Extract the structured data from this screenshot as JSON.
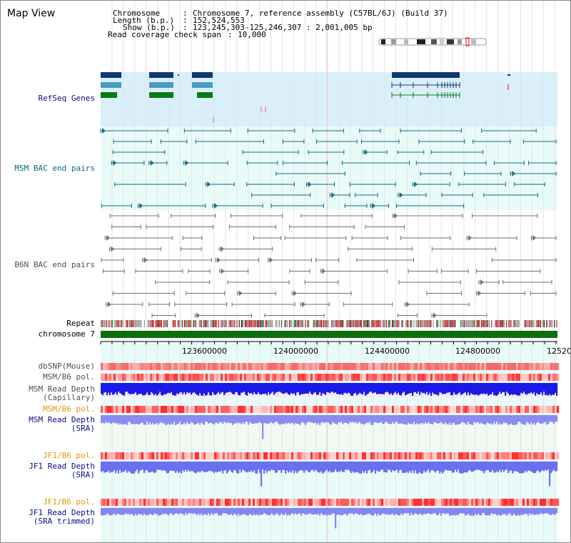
{
  "title": "Map View",
  "info": {
    "chromosome": {
      "key": "Chromosome",
      "value": "Chromosome 7, reference assembly (C57BL/6J) (Build 37)"
    },
    "length": {
      "key": "Length (b.p.)",
      "value": "152,524,553"
    },
    "show": {
      "key": "Show (b.p.)",
      "value": "123,245,303-125,246,307 : 2,001,005 bp"
    },
    "coverage": {
      "key": "Read coverage check span",
      "value": "10,000"
    }
  },
  "tracks": {
    "refseq": "RefSeq Genes",
    "msm_bac": "MSM BAC end pairs",
    "b6n_bac": "B6N BAC end pairs",
    "repeat": "Repeat",
    "chromosome": "chromosome 7",
    "dbsnp": "dbSNP(Mouse)",
    "msm_pol": "MSM/B6 pol.",
    "msm_depth_cap_1": "MSM Read Depth",
    "msm_depth_cap_2": "(Capillary)",
    "msm_pol_2": "MSM/B6 pol.",
    "msm_depth_sra_1": "MSM Read Depth",
    "msm_depth_sra_2": "(SRA)",
    "jf1_pol": "JF1/B6 pol.",
    "jf1_depth_sra_1": "JF1 Read Depth",
    "jf1_depth_sra_2": "(SRA)",
    "jf1_pol_2": "JF1/B6 pol.",
    "jf1_depth_trim_1": "JF1 Read Depth",
    "jf1_depth_trim_2": "(SRA trimmed)"
  },
  "axis_ticks": [
    "123600000",
    "124000000",
    "124400000",
    "124800000",
    "12520"
  ],
  "colors": {
    "refseq_bg": "#d9f0fb",
    "bac_bg": "#e8fbf8",
    "msm_line": "#1a6a82",
    "b6n_line": "#707070",
    "gene_dark": "#10386e",
    "gene_mid": "#4a9cc0",
    "gene_green": "#0a7a14",
    "chromosome_bar": "#0d6e0d",
    "label_black": "#000000",
    "label_darkblue": "#0a0a8a",
    "label_teal": "#006c80",
    "label_gray": "#505050",
    "label_orange": "#e69500"
  }
}
